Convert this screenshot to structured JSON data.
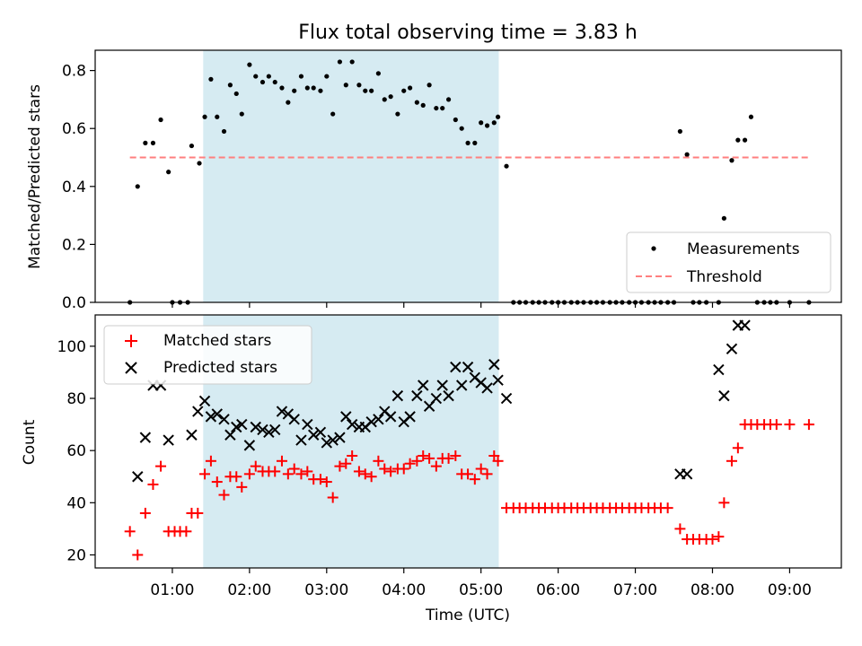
{
  "figure": {
    "title": "Flux total observing time = 3.83 h"
  },
  "chart_data": [
    {
      "type": "scatter",
      "panel": "top",
      "title": "Flux total observing time = 3.83 h",
      "xlabel": "",
      "ylabel": "Matched/Predicted stars",
      "xlim_hours": [
        0.0,
        9.67
      ],
      "ylim": [
        0.0,
        0.87
      ],
      "yticks": [
        0.0,
        0.2,
        0.4,
        0.6,
        0.8
      ],
      "ytick_labels": [
        "0.0",
        "0.2",
        "0.4",
        "0.6",
        "0.8"
      ],
      "observing_window_hours": [
        1.4,
        5.23
      ],
      "window_color": "#add8e6",
      "legend": {
        "placement": "lower right",
        "entries": [
          "Measurements",
          "Threshold"
        ]
      },
      "series": [
        {
          "name": "Measurements",
          "marker": "dot",
          "color": "#000000",
          "x": [
            0.45,
            0.55,
            0.65,
            0.75,
            0.85,
            0.95,
            1.0,
            1.1,
            1.2,
            1.25,
            1.35,
            1.42,
            1.5,
            1.58,
            1.67,
            1.75,
            1.83,
            1.9,
            2.0,
            2.08,
            2.17,
            2.25,
            2.33,
            2.42,
            2.5,
            2.58,
            2.67,
            2.75,
            2.83,
            2.92,
            3.0,
            3.08,
            3.17,
            3.25,
            3.33,
            3.42,
            3.5,
            3.58,
            3.67,
            3.75,
            3.83,
            3.92,
            4.0,
            4.08,
            4.17,
            4.25,
            4.33,
            4.42,
            4.5,
            4.58,
            4.67,
            4.75,
            4.83,
            4.92,
            5.0,
            5.08,
            5.17,
            5.22,
            5.33,
            5.42,
            5.5,
            5.58,
            5.67,
            5.75,
            5.83,
            5.92,
            6.0,
            6.08,
            6.17,
            6.25,
            6.33,
            6.42,
            6.5,
            6.58,
            6.67,
            6.75,
            6.83,
            6.92,
            7.0,
            7.08,
            7.17,
            7.25,
            7.33,
            7.42,
            7.5,
            7.58,
            7.67,
            7.75,
            7.83,
            7.92,
            8.08,
            8.15,
            8.25,
            8.33,
            8.42,
            8.5,
            8.58,
            8.67,
            8.75,
            8.83,
            9.0,
            9.25
          ],
          "y": [
            0.0,
            0.4,
            0.55,
            0.55,
            0.63,
            0.45,
            0.0,
            0.0,
            0.0,
            0.54,
            0.48,
            0.64,
            0.77,
            0.64,
            0.59,
            0.75,
            0.72,
            0.65,
            0.82,
            0.78,
            0.76,
            0.78,
            0.76,
            0.74,
            0.69,
            0.73,
            0.78,
            0.74,
            0.74,
            0.73,
            0.78,
            0.65,
            0.83,
            0.75,
            0.83,
            0.75,
            0.73,
            0.73,
            0.79,
            0.7,
            0.71,
            0.65,
            0.73,
            0.74,
            0.69,
            0.68,
            0.75,
            0.67,
            0.67,
            0.7,
            0.63,
            0.6,
            0.55,
            0.55,
            0.62,
            0.61,
            0.62,
            0.64,
            0.47,
            0.0,
            0.0,
            0.0,
            0.0,
            0.0,
            0.0,
            0.0,
            0.0,
            0.0,
            0.0,
            0.0,
            0.0,
            0.0,
            0.0,
            0.0,
            0.0,
            0.0,
            0.0,
            0.0,
            0.0,
            0.0,
            0.0,
            0.0,
            0.0,
            0.0,
            0.0,
            0.59,
            0.51,
            0.0,
            0.0,
            0.0,
            0.0,
            0.29,
            0.49,
            0.56,
            0.56,
            0.64,
            0.0,
            0.0,
            0.0,
            0.0,
            0.0,
            0.0
          ]
        },
        {
          "name": "Threshold",
          "marker": "dashed-line",
          "color": "#ff7f7f",
          "x": [
            0.45,
            9.25
          ],
          "y": [
            0.5,
            0.5
          ]
        }
      ]
    },
    {
      "type": "scatter",
      "panel": "bottom",
      "xlabel": "Time (UTC)",
      "ylabel": "Count",
      "xlim_hours": [
        0.0,
        9.67
      ],
      "ylim": [
        15,
        112
      ],
      "yticks": [
        20,
        40,
        60,
        80,
        100
      ],
      "ytick_labels": [
        "20",
        "40",
        "60",
        "80",
        "100"
      ],
      "xticks_hours": [
        1,
        2,
        3,
        4,
        5,
        6,
        7,
        8,
        9
      ],
      "xtick_labels": [
        "01:00",
        "02:00",
        "03:00",
        "04:00",
        "05:00",
        "06:00",
        "07:00",
        "08:00",
        "09:00"
      ],
      "observing_window_hours": [
        1.4,
        5.23
      ],
      "window_color": "#add8e6",
      "legend": {
        "placement": "upper left",
        "entries": [
          "Matched stars",
          "Predicted stars"
        ]
      },
      "series": [
        {
          "name": "Matched stars",
          "marker": "plus",
          "color": "#ff0000",
          "x": [
            0.45,
            0.55,
            0.65,
            0.75,
            0.85,
            0.95,
            1.03,
            1.1,
            1.18,
            1.25,
            1.33,
            1.42,
            1.5,
            1.58,
            1.67,
            1.75,
            1.83,
            1.9,
            2.0,
            2.08,
            2.17,
            2.25,
            2.33,
            2.42,
            2.5,
            2.58,
            2.67,
            2.75,
            2.83,
            2.92,
            3.0,
            3.08,
            3.17,
            3.25,
            3.33,
            3.42,
            3.5,
            3.58,
            3.67,
            3.75,
            3.83,
            3.92,
            4.0,
            4.08,
            4.17,
            4.25,
            4.33,
            4.42,
            4.5,
            4.58,
            4.67,
            4.75,
            4.83,
            4.92,
            5.0,
            5.08,
            5.17,
            5.22,
            5.33,
            5.42,
            5.5,
            5.58,
            5.67,
            5.75,
            5.83,
            5.92,
            6.0,
            6.08,
            6.17,
            6.25,
            6.33,
            6.42,
            6.5,
            6.58,
            6.67,
            6.75,
            6.83,
            6.92,
            7.0,
            7.08,
            7.17,
            7.25,
            7.33,
            7.42,
            7.58,
            7.67,
            7.75,
            7.83,
            7.92,
            8.0,
            8.08,
            8.15,
            8.25,
            8.33,
            8.42,
            8.5,
            8.58,
            8.67,
            8.75,
            8.83,
            9.0,
            9.25
          ],
          "y": [
            29,
            20,
            36,
            47,
            54,
            29,
            29,
            29,
            29,
            36,
            36,
            51,
            56,
            48,
            43,
            50,
            50,
            46,
            51,
            54,
            52,
            52,
            52,
            56,
            51,
            53,
            51,
            52,
            49,
            49,
            48,
            42,
            54,
            55,
            58,
            52,
            51,
            50,
            56,
            53,
            52,
            53,
            53,
            55,
            56,
            58,
            57,
            54,
            57,
            57,
            58,
            51,
            51,
            49,
            53,
            51,
            58,
            56,
            38,
            38,
            38,
            38,
            38,
            38,
            38,
            38,
            38,
            38,
            38,
            38,
            38,
            38,
            38,
            38,
            38,
            38,
            38,
            38,
            38,
            38,
            38,
            38,
            38,
            38,
            30,
            26,
            26,
            26,
            26,
            26,
            27,
            40,
            56,
            61,
            70,
            70,
            70,
            70,
            70,
            70,
            70,
            70
          ]
        },
        {
          "name": "Predicted stars",
          "marker": "x",
          "color": "#000000",
          "x": [
            0.55,
            0.65,
            0.75,
            0.85,
            0.95,
            1.25,
            1.33,
            1.42,
            1.5,
            1.58,
            1.67,
            1.75,
            1.83,
            1.9,
            2.0,
            2.08,
            2.17,
            2.25,
            2.33,
            2.42,
            2.5,
            2.58,
            2.67,
            2.75,
            2.83,
            2.92,
            3.0,
            3.08,
            3.17,
            3.25,
            3.33,
            3.42,
            3.5,
            3.58,
            3.67,
            3.75,
            3.83,
            3.92,
            4.0,
            4.08,
            4.17,
            4.25,
            4.33,
            4.42,
            4.5,
            4.58,
            4.67,
            4.75,
            4.83,
            4.92,
            5.0,
            5.08,
            5.17,
            5.22,
            5.33,
            7.58,
            7.67,
            8.08,
            8.15,
            8.25,
            8.33,
            8.42
          ],
          "y": [
            50,
            65,
            85,
            85,
            64,
            66,
            75,
            79,
            73,
            74,
            72,
            66,
            69,
            70,
            62,
            69,
            68,
            67,
            68,
            75,
            74,
            72,
            64,
            70,
            66,
            67,
            63,
            64,
            65,
            73,
            70,
            69,
            69,
            71,
            72,
            75,
            73,
            81,
            71,
            73,
            81,
            85,
            77,
            80,
            85,
            81,
            92,
            85,
            92,
            88,
            86,
            84,
            93,
            87,
            80,
            51,
            51,
            91,
            81,
            99,
            108,
            108
          ]
        }
      ]
    }
  ]
}
